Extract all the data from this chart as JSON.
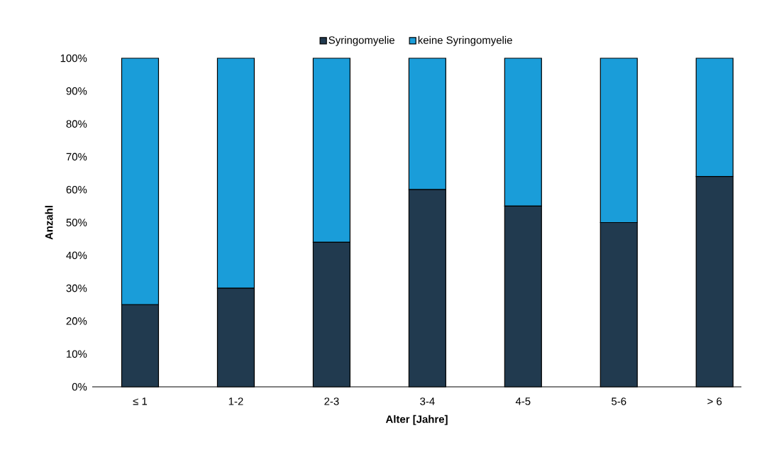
{
  "chart_data": {
    "type": "bar",
    "stacked": true,
    "xlabel": "Alter [Jahre]",
    "ylabel": "Anzahl",
    "categories": [
      "≤ 1",
      "1-2",
      "2-3",
      "3-4",
      "4-5",
      "5-6",
      "> 6"
    ],
    "series": [
      {
        "name": "Syringomyelie",
        "color": "#213a4f",
        "values": [
          25,
          30,
          44,
          60,
          55,
          50,
          64
        ]
      },
      {
        "name": "keine Syringomyelie",
        "color": "#1a9dd9",
        "values": [
          75,
          70,
          56,
          40,
          45,
          50,
          36
        ]
      }
    ],
    "ylim": [
      0,
      100
    ],
    "yticks": [
      {
        "value": 0,
        "label": "0%"
      },
      {
        "value": 10,
        "label": "10%"
      },
      {
        "value": 20,
        "label": "20%"
      },
      {
        "value": 30,
        "label": "30%"
      },
      {
        "value": 40,
        "label": "40%"
      },
      {
        "value": 50,
        "label": "50%"
      },
      {
        "value": 60,
        "label": "60%"
      },
      {
        "value": 70,
        "label": "70%"
      },
      {
        "value": 80,
        "label": "80%"
      },
      {
        "value": 90,
        "label": "90%"
      },
      {
        "value": 100,
        "label": "100%"
      }
    ],
    "legend": "top",
    "grid": false
  }
}
